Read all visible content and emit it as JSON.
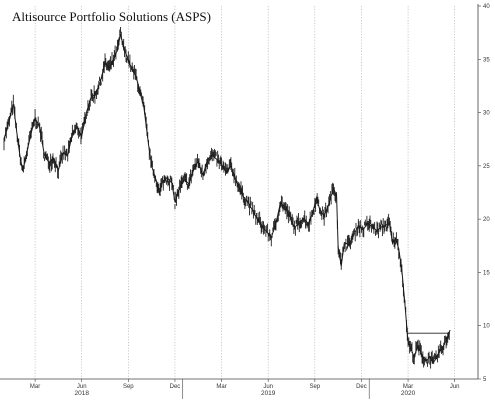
{
  "chart_data": {
    "type": "line",
    "title": "Altisource Portfolio Solutions (ASPS)",
    "xlabel": "",
    "ylabel": "",
    "ylim": [
      5,
      40
    ],
    "y_ticks": [
      5,
      10,
      15,
      20,
      25,
      30,
      35,
      40
    ],
    "y_axis_side": "right",
    "grid": "vertical dotted at month ticks",
    "x_ticks": [
      {
        "month": 2,
        "label": "Mar"
      },
      {
        "month": 5,
        "label": "Jun"
      },
      {
        "month": 8,
        "label": "Sep"
      },
      {
        "month": 11,
        "label": "Dec"
      },
      {
        "month": 14,
        "label": "Mar"
      },
      {
        "month": 17,
        "label": "Jun"
      },
      {
        "month": 20,
        "label": "Sep"
      },
      {
        "month": 23,
        "label": "Dec"
      },
      {
        "month": 26,
        "label": "Mar"
      },
      {
        "month": 29,
        "label": "Jun"
      }
    ],
    "year_labels": [
      {
        "month": 5,
        "label": "2018"
      },
      {
        "month": 17,
        "label": "2019"
      },
      {
        "month": 26,
        "label": "2020"
      }
    ],
    "xlim_months": [
      0,
      30.5
    ],
    "reference_line": {
      "value": 9.3,
      "from_month": 25.9,
      "to_month": 28.7
    },
    "series": [
      {
        "values": [
          [
            0.0,
            27.5
          ],
          [
            0.3,
            29.0
          ],
          [
            0.6,
            30.8
          ],
          [
            0.8,
            28.4
          ],
          [
            1.0,
            26.2
          ],
          [
            1.2,
            24.5
          ],
          [
            1.4,
            25.8
          ],
          [
            1.7,
            27.8
          ],
          [
            2.0,
            29.5
          ],
          [
            2.3,
            28.6
          ],
          [
            2.6,
            26.0
          ],
          [
            2.9,
            25.3
          ],
          [
            3.2,
            25.7
          ],
          [
            3.5,
            24.6
          ],
          [
            3.8,
            26.2
          ],
          [
            4.1,
            26.0
          ],
          [
            4.4,
            28.0
          ],
          [
            4.7,
            28.6
          ],
          [
            5.0,
            27.8
          ],
          [
            5.3,
            30.0
          ],
          [
            5.6,
            31.4
          ],
          [
            5.9,
            31.8
          ],
          [
            6.2,
            32.9
          ],
          [
            6.5,
            34.6
          ],
          [
            6.8,
            34.2
          ],
          [
            7.0,
            34.8
          ],
          [
            7.3,
            35.9
          ],
          [
            7.5,
            37.4
          ],
          [
            7.7,
            36.0
          ],
          [
            8.0,
            35.0
          ],
          [
            8.2,
            34.1
          ],
          [
            8.5,
            33.4
          ],
          [
            8.8,
            31.6
          ],
          [
            9.0,
            30.5
          ],
          [
            9.3,
            27.0
          ],
          [
            9.5,
            25.0
          ],
          [
            9.8,
            23.6
          ],
          [
            10.0,
            22.4
          ],
          [
            10.2,
            23.5
          ],
          [
            10.5,
            23.9
          ],
          [
            10.8,
            23.4
          ],
          [
            11.0,
            21.6
          ],
          [
            11.3,
            22.9
          ],
          [
            11.6,
            23.7
          ],
          [
            11.9,
            23.3
          ],
          [
            12.2,
            24.8
          ],
          [
            12.5,
            25.4
          ],
          [
            12.8,
            24.1
          ],
          [
            13.1,
            25.6
          ],
          [
            13.4,
            26.0
          ],
          [
            13.7,
            25.6
          ],
          [
            14.0,
            25.1
          ],
          [
            14.3,
            24.4
          ],
          [
            14.6,
            25.0
          ],
          [
            14.9,
            23.8
          ],
          [
            15.1,
            23.1
          ],
          [
            15.4,
            22.1
          ],
          [
            15.7,
            21.6
          ],
          [
            16.0,
            20.8
          ],
          [
            16.3,
            20.0
          ],
          [
            16.6,
            19.4
          ],
          [
            16.9,
            18.8
          ],
          [
            17.2,
            18.3
          ],
          [
            17.5,
            19.6
          ],
          [
            17.8,
            21.6
          ],
          [
            18.1,
            21.0
          ],
          [
            18.4,
            20.2
          ],
          [
            18.7,
            19.2
          ],
          [
            19.0,
            19.7
          ],
          [
            19.3,
            20.1
          ],
          [
            19.6,
            19.5
          ],
          [
            19.9,
            20.8
          ],
          [
            20.1,
            22.0
          ],
          [
            20.3,
            21.0
          ],
          [
            20.6,
            20.3
          ],
          [
            20.9,
            21.4
          ],
          [
            21.2,
            22.9
          ],
          [
            21.4,
            22.2
          ],
          [
            21.5,
            17.4
          ],
          [
            21.7,
            15.6
          ],
          [
            21.9,
            17.8
          ],
          [
            22.2,
            17.6
          ],
          [
            22.5,
            18.5
          ],
          [
            22.8,
            19.4
          ],
          [
            23.1,
            19.0
          ],
          [
            23.4,
            19.6
          ],
          [
            23.7,
            19.3
          ],
          [
            24.0,
            18.9
          ],
          [
            24.2,
            19.2
          ],
          [
            24.5,
            19.4
          ],
          [
            24.8,
            19.6
          ],
          [
            25.0,
            17.8
          ],
          [
            25.2,
            18.2
          ],
          [
            25.4,
            17.2
          ],
          [
            25.6,
            15.2
          ],
          [
            25.8,
            12.0
          ],
          [
            26.0,
            8.4
          ],
          [
            26.2,
            7.8
          ],
          [
            26.4,
            7.0
          ],
          [
            26.6,
            8.1
          ],
          [
            26.8,
            7.6
          ],
          [
            27.0,
            6.9
          ],
          [
            27.2,
            6.7
          ],
          [
            27.4,
            7.1
          ],
          [
            27.6,
            6.5
          ],
          [
            27.8,
            6.9
          ],
          [
            28.0,
            7.5
          ],
          [
            28.2,
            7.9
          ],
          [
            28.4,
            8.5
          ],
          [
            28.6,
            9.1
          ],
          [
            28.7,
            9.6
          ]
        ]
      }
    ]
  }
}
